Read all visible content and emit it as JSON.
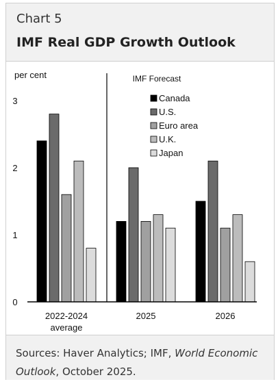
{
  "header": {
    "chart_label": "Chart 5",
    "title": "IMF Real GDP Growth Outlook"
  },
  "chart_data": {
    "type": "bar",
    "title": "IMF Real GDP Growth Outlook",
    "ylabel": "per cent",
    "annotation": "IMF Forecast",
    "ylim": [
      0,
      3.3
    ],
    "yticks": [
      0,
      1,
      2,
      3
    ],
    "categories": [
      "2022-2024\naverage",
      "2025",
      "2026"
    ],
    "series": [
      {
        "name": "Canada",
        "values": [
          2.4,
          1.2,
          1.5
        ],
        "color": "#000000"
      },
      {
        "name": "U.S.",
        "values": [
          2.8,
          2.0,
          2.1
        ],
        "color": "#6b6b6b"
      },
      {
        "name": "Euro area",
        "values": [
          1.6,
          1.2,
          1.1
        ],
        "color": "#a0a0a0"
      },
      {
        "name": "U.K.",
        "values": [
          2.1,
          1.3,
          1.3
        ],
        "color": "#bcbcbc"
      },
      {
        "name": "Japan",
        "values": [
          0.8,
          1.1,
          0.6
        ],
        "color": "#dcdcdc"
      }
    ],
    "grid": false,
    "legend_position": "top-right"
  },
  "footer": {
    "sources_prefix": "Sources: Haver Analytics; IMF, ",
    "sources_italic": "World Economic Outlook",
    "sources_suffix": ", October 2025."
  }
}
